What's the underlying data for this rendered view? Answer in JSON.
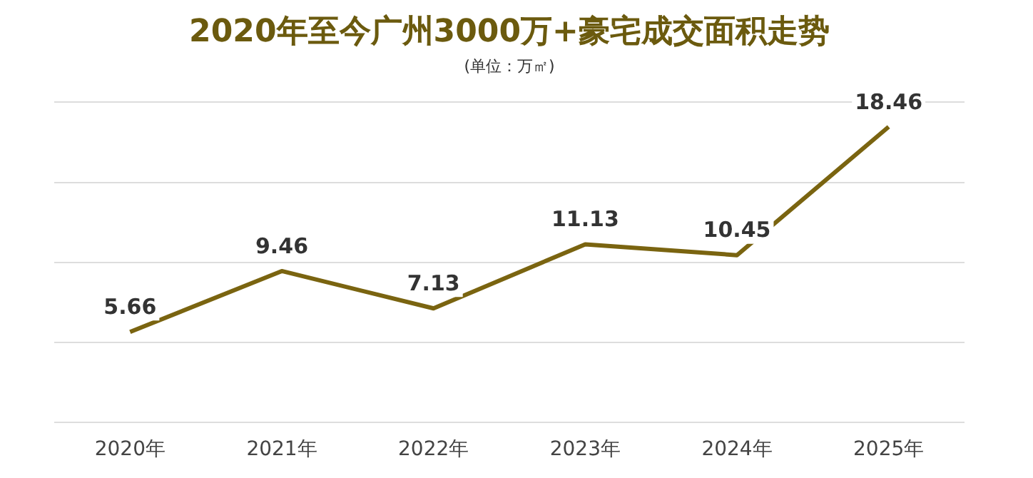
{
  "chart_data": {
    "type": "line",
    "title": "2020年至今广州3000万+豪宅成交面积走势",
    "subtitle": "(单位：万㎡)",
    "categories": [
      "2020年",
      "2021年",
      "2022年",
      "2023年",
      "2024年",
      "2025年"
    ],
    "series": [
      {
        "color": "#7a6410",
        "values": [
          5.66,
          9.46,
          7.13,
          11.13,
          10.45,
          18.46
        ]
      }
    ],
    "ylim": [
      0,
      20
    ],
    "yticks": [
      {
        "value": 0,
        "label": null
      },
      {
        "value": 5,
        "label": null
      },
      {
        "value": 10,
        "label": null
      },
      {
        "value": 15,
        "label": null
      },
      {
        "value": 20,
        "label": null
      }
    ],
    "tick_labels": "x",
    "grid": "y",
    "legend": false,
    "marker": "none",
    "line_style": "solid",
    "data_labels": true
  }
}
